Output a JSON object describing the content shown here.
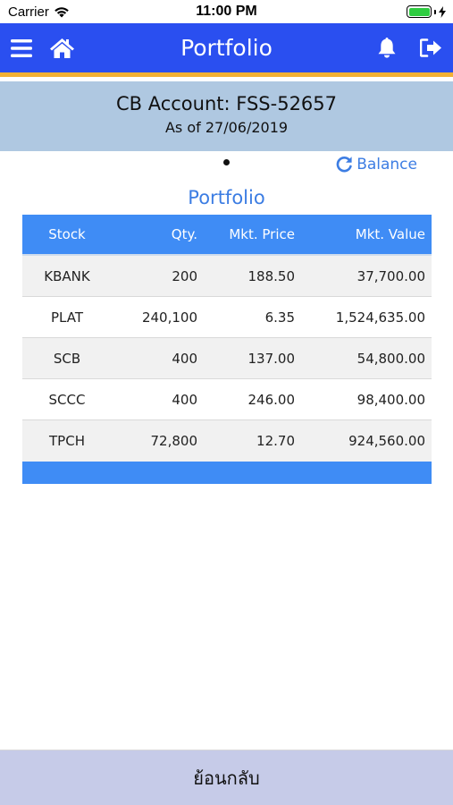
{
  "status_bar": {
    "carrier": "Carrier",
    "time": "11:00 PM"
  },
  "nav": {
    "title": "Portfolio",
    "menu_icon": "menu-icon",
    "home_icon": "home-icon",
    "bell_icon": "bell-icon",
    "logout_icon": "logout-icon"
  },
  "account": {
    "title": "CB Account: FSS-52657",
    "date": "As of 27/06/2019"
  },
  "balance_label": "Balance",
  "section_title": "Portfolio",
  "table": {
    "headers": [
      "Stock",
      "Qty.",
      "Mkt. Price",
      "Mkt. Value"
    ],
    "rows": [
      [
        "KBANK",
        "200",
        "188.50",
        "37,700.00"
      ],
      [
        "PLAT",
        "240,100",
        "6.35",
        "1,524,635.00"
      ],
      [
        "SCB",
        "400",
        "137.00",
        "54,800.00"
      ],
      [
        "SCCC",
        "400",
        "246.00",
        "98,400.00"
      ],
      [
        "TPCH",
        "72,800",
        "12.70",
        "924,560.00"
      ]
    ]
  },
  "back_label": "ย้อนกลับ",
  "colors": {
    "nav": "#2a4ff0",
    "accent_line": "#f2b134",
    "header_bg": "#afc8e1",
    "table_header": "#3f8cf5",
    "link": "#3c7de3",
    "bottom_bar": "#c6cbe8"
  }
}
